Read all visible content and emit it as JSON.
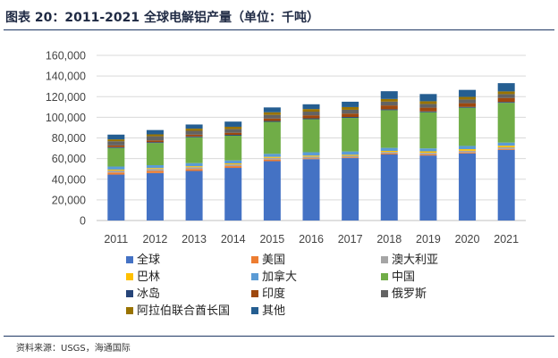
{
  "header": {
    "title": "图表 20：2011-2021 全球电解铝产量（单位：千吨）",
    "source": "资料来源：USGS，海通国际"
  },
  "chart_data": {
    "type": "bar",
    "stacked": true,
    "title": "",
    "xlabel": "",
    "ylabel": "",
    "categories": [
      "2011",
      "2012",
      "2013",
      "2014",
      "2015",
      "2016",
      "2017",
      "2018",
      "2019",
      "2020",
      "2021"
    ],
    "ylim": [
      0,
      160000
    ],
    "yticks": [
      0,
      20000,
      40000,
      60000,
      80000,
      100000,
      120000,
      140000,
      160000
    ],
    "ytick_labels": [
      "0",
      "20,000",
      "40,000",
      "60,000",
      "80,000",
      "100,000",
      "120,000",
      "140,000",
      "160,000"
    ],
    "grid": true,
    "legend_position": "bottom",
    "series": [
      {
        "name": "全球",
        "color": "#4472c4",
        "values": [
          44500,
          46000,
          48000,
          51000,
          57500,
          59500,
          60500,
          64000,
          63000,
          65000,
          68500
        ]
      },
      {
        "name": "美国",
        "color": "#ed7d31",
        "values": [
          2000,
          2100,
          1950,
          1700,
          1600,
          820,
          740,
          890,
          1090,
          1010,
          880
        ]
      },
      {
        "name": "澳大利亚",
        "color": "#a5a5a5",
        "values": [
          1950,
          1860,
          1780,
          1700,
          1650,
          1630,
          1480,
          1570,
          1570,
          1580,
          1550
        ]
      },
      {
        "name": "巴林",
        "color": "#ffc000",
        "values": [
          880,
          890,
          910,
          930,
          960,
          970,
          980,
          1010,
          1370,
          1550,
          1560
        ]
      },
      {
        "name": "加拿大",
        "color": "#5b9bd5",
        "values": [
          2980,
          2780,
          2970,
          2860,
          2880,
          3210,
          3210,
          2920,
          2850,
          3120,
          3020
        ]
      },
      {
        "name": "中国",
        "color": "#70ad47",
        "values": [
          18000,
          21500,
          25000,
          24000,
          31000,
          32000,
          32500,
          36500,
          35000,
          37000,
          38500
        ]
      },
      {
        "name": "冰岛",
        "color": "#264478",
        "values": [
          810,
          820,
          850,
          840,
          860,
          870,
          880,
          870,
          850,
          830,
          860
        ]
      },
      {
        "name": "印度",
        "color": "#9e480e",
        "values": [
          1700,
          1700,
          1750,
          2000,
          2400,
          2900,
          3300,
          3700,
          3600,
          3560,
          3900
        ]
      },
      {
        "name": "俄罗斯",
        "color": "#636363",
        "values": [
          4000,
          4000,
          3700,
          3500,
          3500,
          3600,
          3700,
          3700,
          3600,
          3600,
          3700
        ]
      },
      {
        "name": "阿拉伯联合酋长国",
        "color": "#997300",
        "values": [
          1800,
          1800,
          2100,
          2300,
          2500,
          2500,
          2600,
          2600,
          2600,
          2500,
          2600
        ]
      },
      {
        "name": "其他",
        "color": "#255e91",
        "values": [
          4600,
          4200,
          4000,
          5000,
          4700,
          4600,
          5200,
          7500,
          7000,
          6800,
          8000
        ]
      }
    ]
  }
}
